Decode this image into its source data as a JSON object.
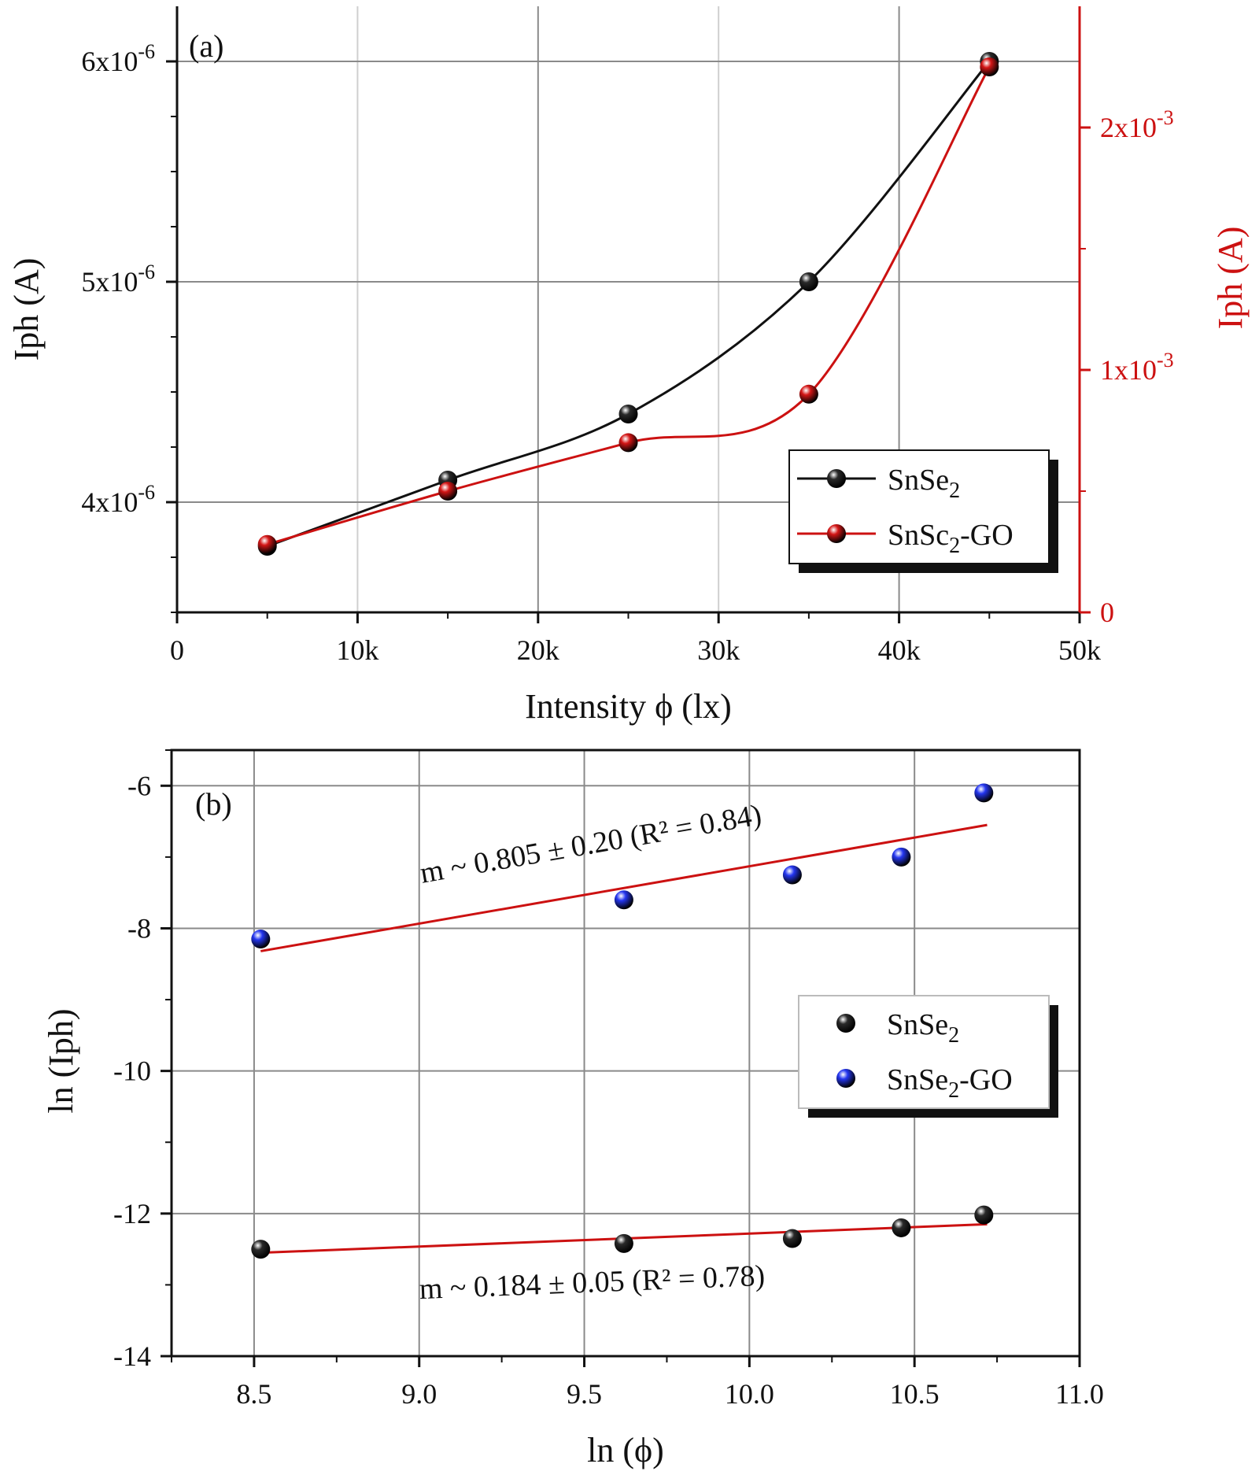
{
  "chart_data": [
    {
      "type": "line",
      "panel_label": "(a)",
      "xlabel": "Intensity ϕ (lx)",
      "ylabel_left": "Iph (A)",
      "ylabel_right": "Iph (A)",
      "xlim": [
        0,
        50000
      ],
      "ylim_left": [
        3.5e-06,
        6.25e-06
      ],
      "ylim_right": [
        0,
        0.0025
      ],
      "x_ticks": [
        0,
        10000,
        20000,
        30000,
        40000,
        50000
      ],
      "x_tick_labels": [
        "0",
        "10k",
        "20k",
        "30k",
        "40k",
        "50k"
      ],
      "y_left_ticks": [
        4e-06,
        5e-06,
        6e-06
      ],
      "y_left_tick_labels": [
        "4x10",
        "5x10",
        "6x10"
      ],
      "y_left_tick_exponents": [
        "-6",
        "-6",
        "-6"
      ],
      "y_right_ticks": [
        0,
        0.001,
        0.002
      ],
      "y_right_tick_labels": [
        "0",
        "1x10",
        "2x10"
      ],
      "y_right_tick_exponents": [
        "",
        "-3",
        "-3"
      ],
      "grid": true,
      "legend_position": "lower-right",
      "series": [
        {
          "name": "SnSe2",
          "axis": "left",
          "color": "#111111",
          "x": [
            5000,
            15000,
            25000,
            35000,
            45000
          ],
          "y": [
            3.8e-06,
            4.1e-06,
            4.4e-06,
            5e-06,
            6e-06
          ]
        },
        {
          "name": "SnSc2-GO",
          "axis": "right",
          "color": "#cc1111",
          "x": [
            5000,
            15000,
            25000,
            35000,
            45000
          ],
          "y": [
            0.00028,
            0.0005,
            0.0007,
            0.0009,
            0.00225
          ]
        }
      ]
    },
    {
      "type": "scatter",
      "panel_label": "(b)",
      "xlabel": "ln (ϕ)",
      "ylabel": "ln (Iph)",
      "xlim": [
        8.25,
        11.0
      ],
      "ylim": [
        -14,
        -5.5
      ],
      "x_ticks": [
        8.5,
        9.0,
        9.5,
        10.0,
        10.5,
        11.0
      ],
      "x_tick_labels": [
        "8.5",
        "9.0",
        "9.5",
        "10.0",
        "10.5",
        "11.0"
      ],
      "y_ticks": [
        -14,
        -12,
        -10,
        -8,
        -6
      ],
      "y_tick_labels": [
        "-14",
        "-12",
        "-10",
        "-8",
        "-6"
      ],
      "grid": true,
      "legend_position": "center-right",
      "series": [
        {
          "name": "SnSe2",
          "color": "#111111",
          "x": [
            8.52,
            9.62,
            10.13,
            10.46,
            10.71
          ],
          "y": [
            -12.5,
            -12.42,
            -12.35,
            -12.2,
            -12.02
          ]
        },
        {
          "name": "SnSe2-GO",
          "color": "#1a2ee6",
          "x": [
            8.52,
            9.62,
            10.13,
            10.46,
            10.71
          ],
          "y": [
            -8.15,
            -7.6,
            -7.25,
            -7.0,
            -6.1
          ]
        }
      ],
      "fits": [
        {
          "x": [
            8.52,
            10.72
          ],
          "y": [
            -12.55,
            -12.15
          ],
          "color": "#cc1111",
          "label": "m ~ 0.184 ± 0.05 (R² = 0.78)"
        },
        {
          "x": [
            8.52,
            10.72
          ],
          "y": [
            -8.32,
            -6.55
          ],
          "color": "#cc1111",
          "label": "m ~ 0.805 ± 0.20 (R² = 0.84)"
        }
      ]
    }
  ]
}
